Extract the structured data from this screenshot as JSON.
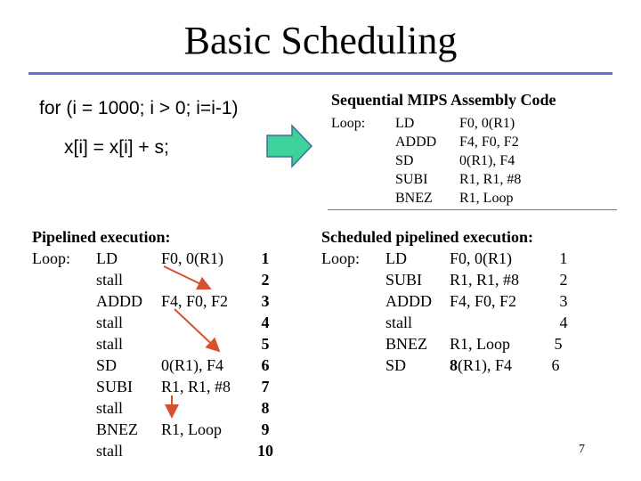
{
  "title": "Basic Scheduling",
  "source": {
    "line1": "for (i = 1000; i > 0; i=i-1)",
    "line2": "x[i] = x[i] + s;"
  },
  "sequential": {
    "title": "Sequential MIPS Assembly Code",
    "label": "Loop:",
    "rows": [
      {
        "op": "LD",
        "args": "F0, 0(R1)"
      },
      {
        "op": "ADDD",
        "args": "F4, F0, F2"
      },
      {
        "op": "SD",
        "args": "0(R1), F4"
      },
      {
        "op": "SUBI",
        "args": "R1, R1, #8"
      },
      {
        "op": "BNEZ",
        "args": "R1, Loop"
      }
    ]
  },
  "pipelined": {
    "title": "Pipelined execution:",
    "label": "Loop:",
    "rows": [
      {
        "op": "LD",
        "args": "F0, 0(R1)",
        "cycle": "1"
      },
      {
        "op": "stall",
        "args": "",
        "cycle": "2"
      },
      {
        "op": "ADDD",
        "args": "F4, F0, F2",
        "cycle": "3"
      },
      {
        "op": "stall",
        "args": "",
        "cycle": "4"
      },
      {
        "op": "stall",
        "args": "",
        "cycle": "5"
      },
      {
        "op": "SD",
        "args": "0(R1), F4",
        "cycle": "6"
      },
      {
        "op": "SUBI",
        "args": "R1, R1, #8",
        "cycle": "7"
      },
      {
        "op": "stall",
        "args": "",
        "cycle": "8"
      },
      {
        "op": "BNEZ",
        "args": "R1, Loop",
        "cycle": "9"
      },
      {
        "op": "stall",
        "args": "",
        "cycle": "10"
      }
    ]
  },
  "scheduled": {
    "title": "Scheduled pipelined execution:",
    "label": "Loop:",
    "rows": [
      {
        "op": "LD",
        "args": "F0, 0(R1)",
        "cycle": "1"
      },
      {
        "op": "SUBI",
        "args": "R1, R1, #8",
        "cycle": "2"
      },
      {
        "op": "ADDD",
        "args": "F4, F0, F2",
        "cycle": "3"
      },
      {
        "op": "stall",
        "args": "",
        "cycle": "4"
      },
      {
        "op": "BNEZ",
        "args": "R1, Loop",
        "cycle": "5"
      },
      {
        "op": "SD",
        "args": "8(R1), F4",
        "cycle": "6",
        "bold_prefix": "8",
        "rest": "(R1), F4"
      }
    ]
  },
  "slide_number": "7",
  "colors": {
    "title_rule": "#5b73c8",
    "arrow_fill": "#3fd19a",
    "arrow_stroke": "#3a6fa0",
    "dependency_arrow": "#d4532e"
  },
  "icons": {
    "flow_arrow": "right-block-arrow-icon"
  }
}
